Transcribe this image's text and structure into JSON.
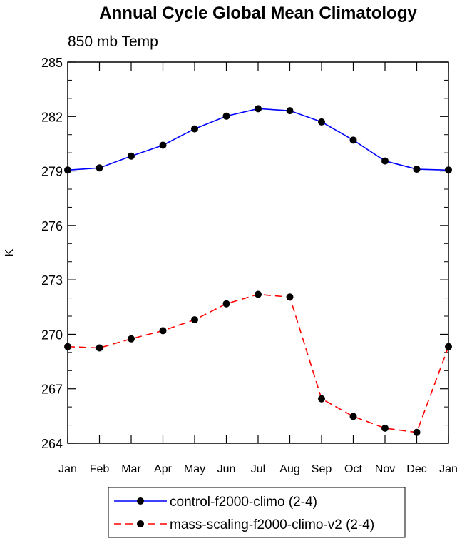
{
  "chart_data": {
    "type": "line",
    "title": "Annual Cycle Global Mean Climatology",
    "subtitle": "850 mb Temp",
    "xlabel": "",
    "ylabel": "K",
    "categories": [
      "Jan",
      "Feb",
      "Mar",
      "Apr",
      "May",
      "Jun",
      "Jul",
      "Aug",
      "Sep",
      "Oct",
      "Nov",
      "Dec",
      "Jan"
    ],
    "ylim": [
      264,
      285
    ],
    "yticks": [
      264,
      267,
      270,
      273,
      276,
      279,
      282,
      285
    ],
    "grid": false,
    "legend_position": "bottom",
    "series": [
      {
        "name": "control-f2000-climo (2-4)",
        "color": "#0000ff",
        "dash": "solid",
        "marker": "filled-circle",
        "values": [
          279.05,
          279.17,
          279.82,
          280.42,
          281.32,
          282.02,
          282.43,
          282.32,
          281.7,
          280.7,
          279.55,
          279.1,
          279.05
        ]
      },
      {
        "name": "mass-scaling-f2000-climo-v2 (2-4)",
        "color": "#ff0000",
        "dash": "dashed",
        "marker": "filled-circle",
        "values": [
          269.32,
          269.25,
          269.75,
          270.2,
          270.8,
          271.68,
          272.2,
          272.05,
          266.45,
          265.48,
          264.83,
          264.6,
          269.32
        ]
      }
    ]
  }
}
